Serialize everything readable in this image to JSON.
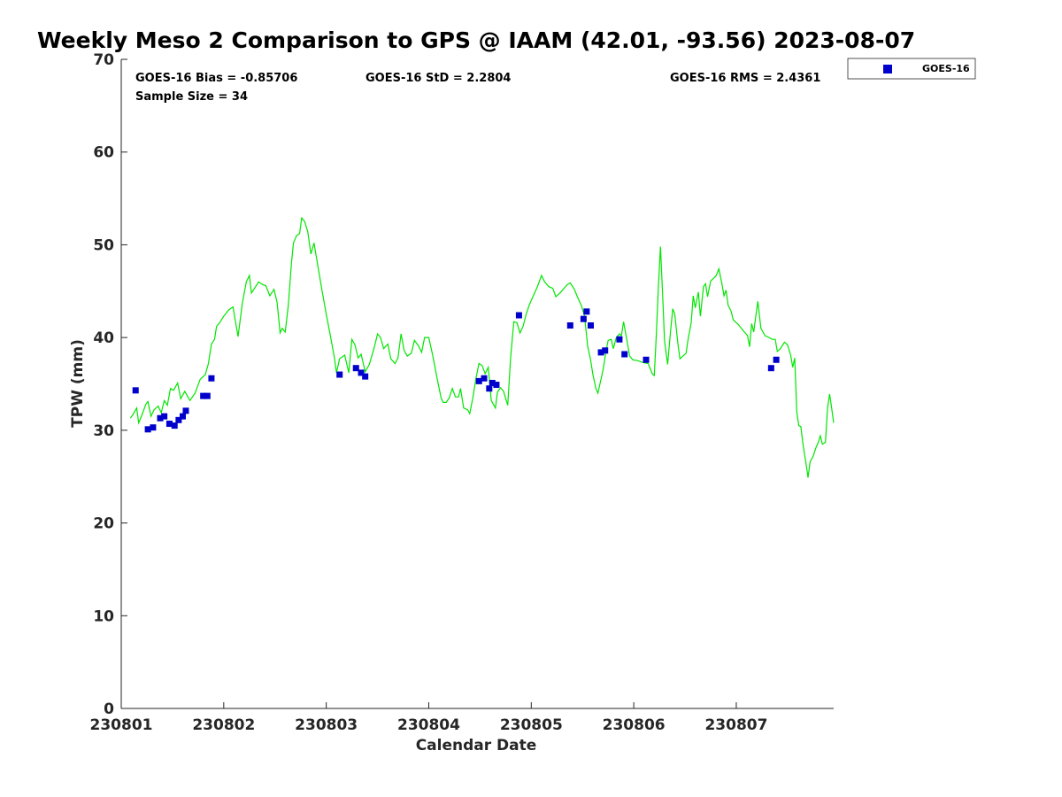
{
  "chart_data": {
    "type": "scatter",
    "title": "Weekly Meso 2 Comparison to GPS @ IAAM (42.01, -93.56) 2023-08-07",
    "xlabel": "Calendar Date",
    "ylabel": "TPW (mm)",
    "xlim": [
      0,
      6.95
    ],
    "ylim": [
      0,
      70
    ],
    "x_ticks": [
      {
        "value": 0,
        "label": "230801"
      },
      {
        "value": 1,
        "label": "230802"
      },
      {
        "value": 2,
        "label": "230803"
      },
      {
        "value": 3,
        "label": "230804"
      },
      {
        "value": 4,
        "label": "230805"
      },
      {
        "value": 5,
        "label": "230806"
      },
      {
        "value": 6,
        "label": "230807"
      }
    ],
    "y_ticks": [
      0,
      10,
      20,
      30,
      40,
      50,
      60,
      70
    ],
    "legend_position": "top-right",
    "stats": {
      "bias": "GOES-16 Bias = -0.85706",
      "std": "GOES-16 StD = 2.2804",
      "rms": "GOES-16 RMS = 2.4361",
      "sample": "Sample Size = 34"
    },
    "series": [
      {
        "name": "GOES-16",
        "kind": "scatter",
        "color": "#0000cc",
        "marker": "square",
        "points": [
          [
            0.14,
            34.3
          ],
          [
            0.26,
            30.1
          ],
          [
            0.31,
            30.3
          ],
          [
            0.38,
            31.3
          ],
          [
            0.42,
            31.5
          ],
          [
            0.47,
            30.7
          ],
          [
            0.52,
            30.5
          ],
          [
            0.56,
            31.1
          ],
          [
            0.6,
            31.5
          ],
          [
            0.63,
            32.1
          ],
          [
            0.8,
            33.7
          ],
          [
            0.84,
            33.7
          ],
          [
            0.88,
            35.6
          ],
          [
            2.13,
            36.0
          ],
          [
            2.29,
            36.7
          ],
          [
            2.34,
            36.2
          ],
          [
            2.38,
            35.8
          ],
          [
            3.49,
            35.3
          ],
          [
            3.54,
            35.6
          ],
          [
            3.59,
            34.5
          ],
          [
            3.62,
            35.1
          ],
          [
            3.66,
            34.9
          ],
          [
            3.88,
            42.4
          ],
          [
            4.38,
            41.3
          ],
          [
            4.51,
            42.0
          ],
          [
            4.54,
            42.8
          ],
          [
            4.58,
            41.3
          ],
          [
            4.68,
            38.4
          ],
          [
            4.72,
            38.6
          ],
          [
            4.86,
            39.8
          ],
          [
            4.91,
            38.2
          ],
          [
            5.12,
            37.6
          ],
          [
            6.34,
            36.7
          ],
          [
            6.39,
            37.6
          ]
        ]
      },
      {
        "kind": "line",
        "color": "#00e600",
        "points": [
          [
            0.09,
            31.3
          ],
          [
            0.12,
            31.8
          ],
          [
            0.15,
            32.4
          ],
          [
            0.17,
            30.8
          ],
          [
            0.2,
            31.6
          ],
          [
            0.24,
            32.8
          ],
          [
            0.26,
            33.1
          ],
          [
            0.29,
            31.5
          ],
          [
            0.32,
            32.2
          ],
          [
            0.36,
            32.6
          ],
          [
            0.39,
            31.9
          ],
          [
            0.42,
            33.2
          ],
          [
            0.45,
            32.7
          ],
          [
            0.48,
            34.5
          ],
          [
            0.51,
            34.3
          ],
          [
            0.55,
            35.1
          ],
          [
            0.58,
            33.4
          ],
          [
            0.62,
            34.2
          ],
          [
            0.67,
            33.2
          ],
          [
            0.72,
            34.0
          ],
          [
            0.77,
            35.5
          ],
          [
            0.82,
            36.0
          ],
          [
            0.85,
            37.2
          ],
          [
            0.88,
            39.3
          ],
          [
            0.91,
            39.8
          ],
          [
            0.93,
            41.2
          ],
          [
            0.96,
            41.6
          ],
          [
            1.0,
            42.3
          ],
          [
            1.05,
            43.0
          ],
          [
            1.09,
            43.3
          ],
          [
            1.14,
            40.1
          ],
          [
            1.18,
            43.6
          ],
          [
            1.22,
            46.0
          ],
          [
            1.25,
            46.7
          ],
          [
            1.27,
            44.8
          ],
          [
            1.3,
            45.3
          ],
          [
            1.34,
            46.0
          ],
          [
            1.38,
            45.7
          ],
          [
            1.41,
            45.6
          ],
          [
            1.45,
            44.5
          ],
          [
            1.49,
            45.2
          ],
          [
            1.52,
            43.8
          ],
          [
            1.55,
            40.5
          ],
          [
            1.57,
            41.0
          ],
          [
            1.6,
            40.6
          ],
          [
            1.63,
            43.5
          ],
          [
            1.66,
            48.0
          ],
          [
            1.68,
            50.2
          ],
          [
            1.71,
            51.0
          ],
          [
            1.74,
            51.2
          ],
          [
            1.76,
            52.9
          ],
          [
            1.79,
            52.5
          ],
          [
            1.82,
            51.4
          ],
          [
            1.85,
            49.0
          ],
          [
            1.88,
            50.2
          ],
          [
            1.92,
            47.6
          ],
          [
            1.96,
            45.0
          ],
          [
            2.0,
            42.5
          ],
          [
            2.04,
            40.2
          ],
          [
            2.08,
            37.8
          ],
          [
            2.1,
            36.2
          ],
          [
            2.13,
            37.7
          ],
          [
            2.18,
            38.1
          ],
          [
            2.22,
            36.2
          ],
          [
            2.25,
            39.8
          ],
          [
            2.28,
            39.2
          ],
          [
            2.31,
            37.8
          ],
          [
            2.34,
            38.2
          ],
          [
            2.38,
            36.3
          ],
          [
            2.42,
            37.1
          ],
          [
            2.47,
            39.0
          ],
          [
            2.5,
            40.4
          ],
          [
            2.53,
            40.0
          ],
          [
            2.56,
            38.8
          ],
          [
            2.6,
            39.3
          ],
          [
            2.63,
            37.7
          ],
          [
            2.67,
            37.2
          ],
          [
            2.7,
            37.8
          ],
          [
            2.73,
            40.4
          ],
          [
            2.76,
            38.6
          ],
          [
            2.79,
            38.0
          ],
          [
            2.83,
            38.3
          ],
          [
            2.86,
            39.7
          ],
          [
            2.9,
            39.1
          ],
          [
            2.93,
            38.4
          ],
          [
            2.96,
            40.0
          ],
          [
            3.0,
            40.0
          ],
          [
            3.04,
            38.0
          ],
          [
            3.08,
            35.7
          ],
          [
            3.12,
            33.5
          ],
          [
            3.14,
            33.0
          ],
          [
            3.17,
            33.0
          ],
          [
            3.2,
            33.5
          ],
          [
            3.23,
            34.5
          ],
          [
            3.26,
            33.6
          ],
          [
            3.29,
            33.6
          ],
          [
            3.31,
            34.5
          ],
          [
            3.34,
            32.4
          ],
          [
            3.38,
            32.2
          ],
          [
            3.4,
            31.8
          ],
          [
            3.43,
            33.5
          ],
          [
            3.46,
            35.6
          ],
          [
            3.49,
            37.2
          ],
          [
            3.52,
            37.0
          ],
          [
            3.55,
            36.1
          ],
          [
            3.58,
            36.8
          ],
          [
            3.61,
            33.2
          ],
          [
            3.65,
            32.4
          ],
          [
            3.67,
            34.1
          ],
          [
            3.7,
            34.6
          ],
          [
            3.73,
            34.2
          ],
          [
            3.77,
            32.7
          ],
          [
            3.8,
            38.0
          ],
          [
            3.83,
            41.7
          ],
          [
            3.86,
            41.6
          ],
          [
            3.89,
            40.5
          ],
          [
            3.92,
            41.2
          ],
          [
            3.95,
            42.5
          ],
          [
            3.98,
            43.5
          ],
          [
            4.02,
            44.5
          ],
          [
            4.06,
            45.5
          ],
          [
            4.1,
            46.7
          ],
          [
            4.13,
            46.0
          ],
          [
            4.17,
            45.5
          ],
          [
            4.21,
            45.3
          ],
          [
            4.24,
            44.4
          ],
          [
            4.28,
            44.8
          ],
          [
            4.32,
            45.3
          ],
          [
            4.35,
            45.7
          ],
          [
            4.38,
            45.9
          ],
          [
            4.42,
            45.2
          ],
          [
            4.45,
            44.4
          ],
          [
            4.49,
            43.4
          ],
          [
            4.52,
            42.3
          ],
          [
            4.55,
            39.1
          ],
          [
            4.58,
            37.5
          ],
          [
            4.6,
            36.1
          ],
          [
            4.63,
            34.5
          ],
          [
            4.65,
            34.0
          ],
          [
            4.68,
            35.5
          ],
          [
            4.7,
            36.5
          ],
          [
            4.73,
            38.6
          ],
          [
            4.75,
            39.7
          ],
          [
            4.78,
            39.8
          ],
          [
            4.8,
            38.8
          ],
          [
            4.83,
            40.0
          ],
          [
            4.86,
            40.4
          ],
          [
            4.88,
            40.2
          ],
          [
            4.9,
            41.7
          ],
          [
            4.93,
            39.9
          ],
          [
            4.96,
            38.0
          ],
          [
            4.99,
            37.6
          ],
          [
            5.04,
            37.5
          ],
          [
            5.09,
            37.3
          ],
          [
            5.14,
            37.2
          ],
          [
            5.18,
            36.1
          ],
          [
            5.2,
            35.9
          ],
          [
            5.22,
            40.3
          ],
          [
            5.24,
            45.4
          ],
          [
            5.26,
            49.8
          ],
          [
            5.28,
            44.9
          ],
          [
            5.3,
            39.6
          ],
          [
            5.33,
            37.1
          ],
          [
            5.36,
            40.8
          ],
          [
            5.38,
            43.1
          ],
          [
            5.4,
            42.5
          ],
          [
            5.43,
            39.4
          ],
          [
            5.45,
            37.7
          ],
          [
            5.48,
            38.0
          ],
          [
            5.51,
            38.3
          ],
          [
            5.53,
            39.8
          ],
          [
            5.56,
            41.6
          ],
          [
            5.58,
            44.5
          ],
          [
            5.6,
            43.2
          ],
          [
            5.63,
            44.9
          ],
          [
            5.65,
            42.3
          ],
          [
            5.68,
            45.5
          ],
          [
            5.7,
            45.8
          ],
          [
            5.72,
            44.4
          ],
          [
            5.75,
            46.1
          ],
          [
            5.78,
            46.4
          ],
          [
            5.8,
            46.6
          ],
          [
            5.83,
            47.4
          ],
          [
            5.86,
            45.8
          ],
          [
            5.88,
            44.5
          ],
          [
            5.9,
            45.1
          ],
          [
            5.92,
            43.5
          ],
          [
            5.95,
            42.8
          ],
          [
            5.97,
            41.9
          ],
          [
            6.02,
            41.4
          ],
          [
            6.07,
            40.7
          ],
          [
            6.11,
            40.2
          ],
          [
            6.13,
            39.0
          ],
          [
            6.15,
            41.5
          ],
          [
            6.17,
            40.6
          ],
          [
            6.19,
            42.3
          ],
          [
            6.21,
            43.9
          ],
          [
            6.24,
            41.0
          ],
          [
            6.28,
            40.2
          ],
          [
            6.32,
            40.0
          ],
          [
            6.35,
            39.8
          ],
          [
            6.38,
            39.8
          ],
          [
            6.4,
            38.5
          ],
          [
            6.43,
            38.8
          ],
          [
            6.47,
            39.5
          ],
          [
            6.5,
            39.2
          ],
          [
            6.53,
            38.1
          ],
          [
            6.55,
            36.8
          ],
          [
            6.57,
            37.8
          ],
          [
            6.59,
            32.0
          ],
          [
            6.61,
            30.5
          ],
          [
            6.63,
            30.4
          ],
          [
            6.65,
            28.5
          ],
          [
            6.67,
            27.1
          ],
          [
            6.69,
            25.7
          ],
          [
            6.7,
            24.9
          ],
          [
            6.72,
            26.6
          ],
          [
            6.75,
            27.2
          ],
          [
            6.78,
            28.2
          ],
          [
            6.8,
            28.7
          ],
          [
            6.82,
            29.4
          ],
          [
            6.84,
            28.5
          ],
          [
            6.87,
            28.7
          ],
          [
            6.89,
            32.4
          ],
          [
            6.91,
            33.9
          ],
          [
            6.93,
            32.4
          ],
          [
            6.95,
            30.8
          ]
        ]
      }
    ]
  }
}
